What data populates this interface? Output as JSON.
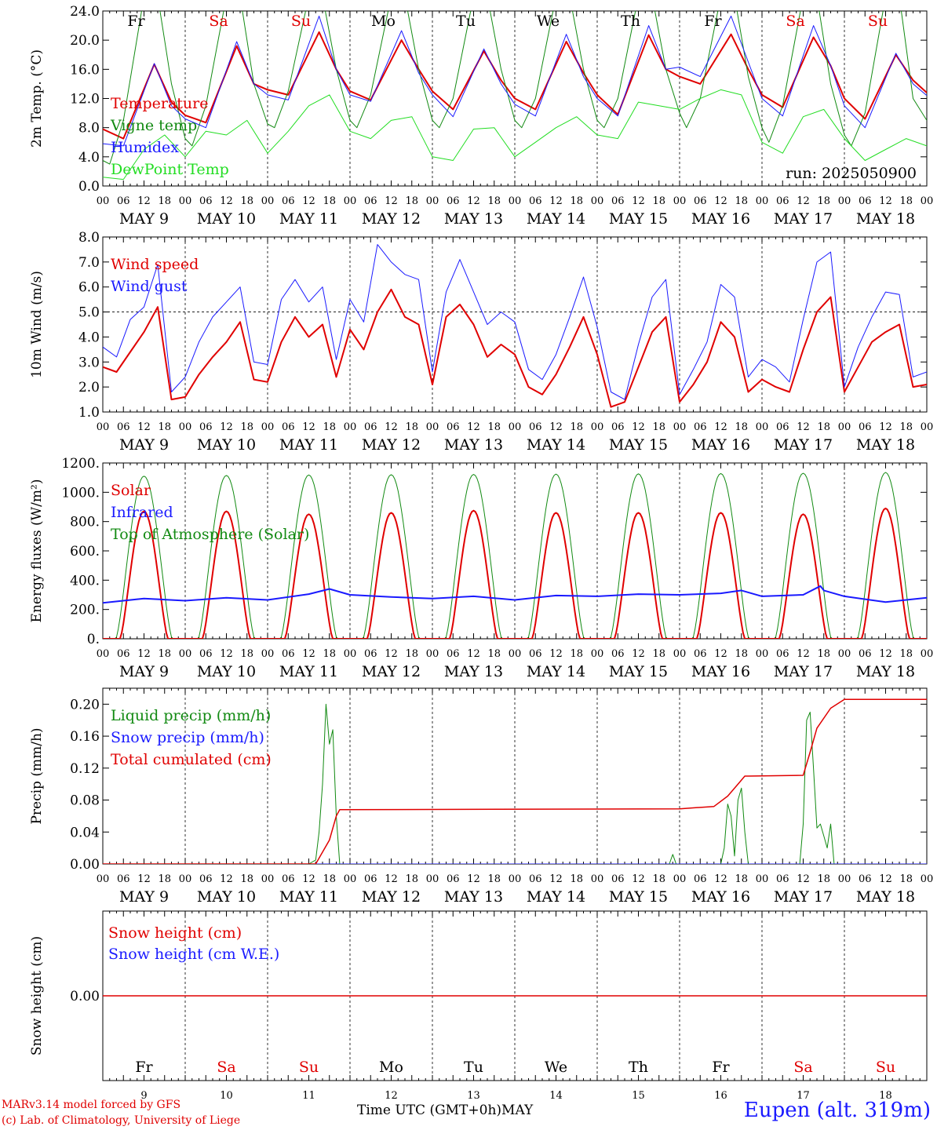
{
  "run_label": "run: 2025050900",
  "footer": {
    "credit_line1": "MARv3.14 model forced by GFS",
    "credit_line2": "(c) Lab. of Climatology, University of Liege",
    "xlabel": "Time UTC (GMT+0h)",
    "month": "MAY",
    "station": "Eupen (alt. 319m)"
  },
  "colors": {
    "red": "#e00000",
    "green": "#128a12",
    "blue": "#1a1aff",
    "lightgreen": "#22dd22",
    "black": "#000000"
  },
  "days": [
    {
      "abbr": "Fr",
      "date_label": "MAY  9",
      "num": "9",
      "weekend": false
    },
    {
      "abbr": "Sa",
      "date_label": "MAY 10",
      "num": "10",
      "weekend": true
    },
    {
      "abbr": "Su",
      "date_label": "MAY 11",
      "num": "11",
      "weekend": true
    },
    {
      "abbr": "Mo",
      "date_label": "MAY 12",
      "num": "12",
      "weekend": false
    },
    {
      "abbr": "Tu",
      "date_label": "MAY 13",
      "num": "13",
      "weekend": false
    },
    {
      "abbr": "We",
      "date_label": "MAY 14",
      "num": "14",
      "weekend": false
    },
    {
      "abbr": "Th",
      "date_label": "MAY 15",
      "num": "15",
      "weekend": false
    },
    {
      "abbr": "Fr",
      "date_label": "MAY 16",
      "num": "16",
      "weekend": false
    },
    {
      "abbr": "Sa",
      "date_label": "MAY 17",
      "num": "17",
      "weekend": true
    },
    {
      "abbr": "Su",
      "date_label": "MAY 18",
      "num": "18",
      "weekend": true
    }
  ],
  "hour_ticks": [
    "00",
    "06",
    "12",
    "18"
  ],
  "chart_data": [
    {
      "type": "line",
      "ylabel": "2m Temp. (°C)",
      "ylim": [
        0,
        24
      ],
      "yticks": [
        "0.0",
        "4.0",
        "8.0",
        "12.0",
        "16.0",
        "20.0",
        "24.0"
      ],
      "xlim_hours": [
        0,
        240
      ],
      "series": [
        {
          "name": "Temperature",
          "color": "#e00000",
          "width": 2,
          "x": [
            0,
            6,
            15,
            20,
            24,
            30,
            39,
            44,
            48,
            54,
            63,
            68,
            72,
            78,
            87,
            92,
            96,
            102,
            111,
            116,
            120,
            126,
            135,
            140,
            144,
            150,
            159,
            164,
            168,
            174,
            183,
            188,
            192,
            198,
            207,
            212,
            216,
            222,
            231,
            236,
            240
          ],
          "y": [
            7.8,
            6.5,
            16.7,
            11.5,
            9.7,
            8.7,
            19.2,
            14.0,
            13.2,
            12.5,
            21.1,
            16.0,
            13.0,
            11.8,
            20.0,
            16.0,
            13.0,
            10.5,
            18.5,
            14.5,
            12.0,
            10.5,
            19.8,
            15.5,
            12.5,
            9.8,
            20.7,
            16.0,
            15.0,
            14.0,
            20.8,
            16.0,
            12.5,
            10.8,
            20.4,
            16.5,
            12.0,
            9.2,
            18.0,
            14.5,
            12.8
          ]
        },
        {
          "name": "Vigne temp",
          "color": "#128a12",
          "width": 1,
          "x": [
            0,
            2,
            6,
            12,
            16,
            20,
            24,
            26,
            30,
            36,
            40,
            44,
            48,
            50,
            54,
            60,
            64,
            68,
            72,
            74,
            78,
            84,
            88,
            92,
            96,
            98,
            102,
            108,
            112,
            116,
            120,
            122,
            126,
            132,
            136,
            140,
            144,
            146,
            150,
            156,
            160,
            164,
            168,
            170,
            174,
            180,
            184,
            188,
            192,
            194,
            198,
            204,
            208,
            212,
            216,
            218,
            222,
            228,
            232,
            236,
            240
          ],
          "y": [
            3.5,
            3.0,
            9.0,
            26.0,
            26.0,
            14.0,
            6.5,
            5.5,
            11.0,
            26.0,
            26.0,
            14.0,
            8.5,
            8.0,
            13.0,
            26.0,
            26.0,
            16.0,
            9.0,
            8.0,
            12.5,
            26.0,
            26.0,
            16.0,
            9.0,
            8.0,
            12.0,
            26.0,
            26.0,
            16.0,
            9.0,
            8.0,
            12.0,
            26.0,
            26.0,
            16.0,
            9.0,
            8.0,
            12.0,
            26.0,
            26.0,
            16.0,
            10.0,
            8.0,
            12.0,
            26.0,
            26.0,
            15.0,
            8.0,
            6.0,
            11.0,
            26.0,
            26.0,
            14.0,
            7.0,
            5.5,
            10.0,
            26.0,
            26.0,
            12.0,
            9.0
          ]
        },
        {
          "name": "Humidex",
          "color": "#1a1aff",
          "width": 1,
          "x": [
            0,
            6,
            15,
            20,
            24,
            30,
            39,
            44,
            48,
            54,
            63,
            68,
            72,
            78,
            87,
            92,
            96,
            102,
            111,
            116,
            120,
            126,
            135,
            140,
            144,
            150,
            159,
            164,
            168,
            174,
            183,
            188,
            192,
            198,
            207,
            212,
            216,
            222,
            231,
            236,
            240
          ],
          "y": [
            5.8,
            5.5,
            16.8,
            11.0,
            9.2,
            8.0,
            19.8,
            14.0,
            12.5,
            11.8,
            23.3,
            16.0,
            12.5,
            11.6,
            21.3,
            15.5,
            12.5,
            9.5,
            18.8,
            14.0,
            11.2,
            9.6,
            20.8,
            15.0,
            12.0,
            9.6,
            22.0,
            16.0,
            16.3,
            15.0,
            23.3,
            17.0,
            12.0,
            9.6,
            22.0,
            16.5,
            11.0,
            8.0,
            18.2,
            14.0,
            12.4
          ]
        },
        {
          "name": "DewPoint Temp",
          "color": "#22dd22",
          "width": 1,
          "x": [
            0,
            6,
            12,
            18,
            24,
            30,
            36,
            42,
            48,
            54,
            60,
            66,
            72,
            78,
            84,
            90,
            96,
            102,
            108,
            114,
            120,
            126,
            132,
            138,
            144,
            150,
            156,
            162,
            168,
            174,
            180,
            186,
            192,
            198,
            204,
            210,
            216,
            222,
            228,
            234,
            240
          ],
          "y": [
            1.2,
            0.9,
            5.0,
            7.0,
            4.0,
            7.5,
            7.0,
            9.0,
            4.5,
            7.5,
            11.0,
            12.5,
            7.5,
            6.5,
            9.0,
            9.5,
            4.0,
            3.5,
            7.8,
            8.0,
            4.0,
            6.0,
            8.0,
            9.5,
            7.0,
            6.5,
            11.5,
            11.0,
            10.5,
            12.0,
            13.2,
            12.5,
            6.0,
            4.5,
            9.5,
            10.5,
            6.5,
            3.5,
            5.0,
            6.5,
            5.5
          ]
        }
      ]
    },
    {
      "type": "line",
      "ylabel": "10m Wind (m/s)",
      "ylim": [
        1,
        8
      ],
      "yticks": [
        "1.0",
        "2.0",
        "3.0",
        "4.0",
        "5.0",
        "6.0",
        "7.0",
        "8.0"
      ],
      "ref_line": 5,
      "xlim_hours": [
        0,
        240
      ],
      "series": [
        {
          "name": "Wind speed",
          "color": "#e00000",
          "width": 2,
          "x": [
            0,
            4,
            8,
            12,
            16,
            20,
            24,
            28,
            32,
            36,
            40,
            44,
            48,
            52,
            56,
            60,
            64,
            68,
            72,
            76,
            80,
            84,
            88,
            92,
            96,
            100,
            104,
            108,
            112,
            116,
            120,
            124,
            128,
            132,
            136,
            140,
            144,
            148,
            152,
            156,
            160,
            164,
            168,
            172,
            176,
            180,
            184,
            188,
            192,
            196,
            200,
            204,
            208,
            212,
            216,
            220,
            224,
            228,
            232,
            236,
            240
          ],
          "y": [
            2.8,
            2.6,
            3.4,
            4.2,
            5.2,
            1.5,
            1.6,
            2.5,
            3.2,
            3.8,
            4.6,
            2.3,
            2.2,
            3.8,
            4.8,
            4.0,
            4.5,
            2.4,
            4.3,
            3.5,
            5.0,
            5.9,
            4.8,
            4.5,
            2.1,
            4.8,
            5.3,
            4.5,
            3.2,
            3.7,
            3.3,
            2.0,
            1.7,
            2.5,
            3.6,
            4.8,
            3.3,
            1.2,
            1.4,
            2.8,
            4.2,
            4.8,
            1.4,
            2.1,
            3.0,
            4.6,
            4.0,
            1.8,
            2.3,
            2.0,
            1.8,
            3.5,
            5.0,
            5.6,
            1.8,
            2.8,
            3.8,
            4.2,
            4.5,
            2.0,
            2.1
          ]
        },
        {
          "name": "Wind gust",
          "color": "#1a1aff",
          "width": 1,
          "x": [
            0,
            4,
            8,
            12,
            16,
            20,
            24,
            28,
            32,
            36,
            40,
            44,
            48,
            52,
            56,
            60,
            64,
            68,
            72,
            76,
            80,
            84,
            88,
            92,
            96,
            100,
            104,
            108,
            112,
            116,
            120,
            124,
            128,
            132,
            136,
            140,
            144,
            148,
            152,
            156,
            160,
            164,
            168,
            172,
            176,
            180,
            184,
            188,
            192,
            196,
            200,
            204,
            208,
            212,
            216,
            220,
            224,
            228,
            232,
            236,
            240
          ],
          "y": [
            3.6,
            3.2,
            4.7,
            5.2,
            6.9,
            1.8,
            2.4,
            3.8,
            4.8,
            5.4,
            6.0,
            3.0,
            2.9,
            5.5,
            6.3,
            5.4,
            6.0,
            3.1,
            5.5,
            4.6,
            7.7,
            7.0,
            6.5,
            6.3,
            2.6,
            5.8,
            7.1,
            5.8,
            4.5,
            5.0,
            4.6,
            2.7,
            2.3,
            3.3,
            4.8,
            6.4,
            4.4,
            1.8,
            1.5,
            3.7,
            5.6,
            6.3,
            1.7,
            2.7,
            3.8,
            6.1,
            5.6,
            2.4,
            3.1,
            2.8,
            2.2,
            4.7,
            7.0,
            7.4,
            2.0,
            3.6,
            4.8,
            5.8,
            5.7,
            2.4,
            2.6
          ]
        }
      ]
    },
    {
      "type": "line",
      "ylabel": "Energy fluxes (W/m²)",
      "ylim": [
        0,
        1200
      ],
      "yticks": [
        "0.",
        "200.",
        "400.",
        "600.",
        "800.",
        "1000.",
        "1200."
      ],
      "xlim_hours": [
        0,
        240
      ],
      "diurnal": {
        "solar_peaks": [
          870,
          870,
          850,
          860,
          875,
          860,
          860,
          860,
          850,
          890
        ],
        "toa_peaks": [
          1110,
          1115,
          1118,
          1120,
          1122,
          1124,
          1126,
          1128,
          1130,
          1135
        ],
        "solar_halfwidth_h": 7,
        "toa_halfwidth_h": 8.2
      },
      "series": [
        {
          "name": "Solar",
          "color": "#e00000",
          "width": 2
        },
        {
          "name": "Infrared",
          "color": "#1a1aff",
          "width": 2,
          "x": [
            0,
            12,
            24,
            36,
            48,
            60,
            66,
            72,
            84,
            96,
            108,
            120,
            132,
            144,
            156,
            168,
            180,
            186,
            192,
            204,
            209,
            210,
            216,
            228,
            240
          ],
          "y": [
            245,
            275,
            260,
            280,
            265,
            305,
            340,
            300,
            285,
            275,
            290,
            265,
            295,
            290,
            305,
            300,
            310,
            330,
            290,
            300,
            360,
            330,
            290,
            250,
            280
          ]
        },
        {
          "name": "Top of Atmosphere (Solar)",
          "color": "#128a12",
          "width": 1
        }
      ]
    },
    {
      "type": "line",
      "ylabel": "Precip (mm/h)",
      "ylim": [
        0,
        0.22
      ],
      "yticks": [
        "0.00",
        "0.04",
        "0.08",
        "0.12",
        "0.16",
        "0.20"
      ],
      "xlim_hours": [
        0,
        240
      ],
      "series": [
        {
          "name": "Liquid precip (mm/h)",
          "color": "#128a12",
          "width": 1,
          "x": [
            0,
            60,
            62,
            63,
            64,
            65,
            66,
            67,
            68,
            69,
            70,
            165,
            166,
            167,
            168,
            180,
            181,
            182,
            183,
            184,
            185,
            186,
            187,
            188,
            203,
            204,
            205,
            206,
            207,
            208,
            209,
            210,
            211,
            212,
            213,
            214,
            215,
            240
          ],
          "y": [
            0,
            0,
            0.005,
            0.04,
            0.1,
            0.2,
            0.15,
            0.168,
            0.06,
            0.0,
            0.0,
            0,
            0.012,
            0,
            0,
            0,
            0.02,
            0.075,
            0.06,
            0.01,
            0.08,
            0.095,
            0.04,
            0.0,
            0.0,
            0.05,
            0.18,
            0.19,
            0.12,
            0.045,
            0.05,
            0.035,
            0.02,
            0.05,
            0.0,
            0.0,
            0.0,
            0.0
          ]
        },
        {
          "name": "Snow precip (mm/h)",
          "color": "#1a1aff",
          "width": 1,
          "x": [
            0,
            240
          ],
          "y": [
            0,
            0
          ]
        },
        {
          "name": "Total cumulated (cm)",
          "color": "#e00000",
          "width": 1.5,
          "x": [
            0,
            62,
            66,
            68,
            69,
            70,
            168,
            178,
            182,
            185,
            187,
            188,
            204,
            206,
            208,
            212,
            216,
            240
          ],
          "y": [
            0,
            0,
            0.03,
            0.06,
            0.068,
            0.068,
            0.069,
            0.072,
            0.085,
            0.1,
            0.11,
            0.11,
            0.111,
            0.14,
            0.17,
            0.195,
            0.206,
            0.206
          ]
        }
      ]
    },
    {
      "type": "line",
      "ylabel": "Snow height (cm)",
      "ylim": [
        -1,
        1
      ],
      "yticks": [
        "0.00"
      ],
      "xlim_hours": [
        0,
        240
      ],
      "series": [
        {
          "name": "Snow height (cm)",
          "color": "#e00000",
          "width": 1.5,
          "x": [
            0,
            240
          ],
          "y": [
            0,
            0
          ]
        },
        {
          "name": "Snow height (cm W.E.)",
          "color": "#1a1aff",
          "width": 1
        }
      ]
    }
  ]
}
